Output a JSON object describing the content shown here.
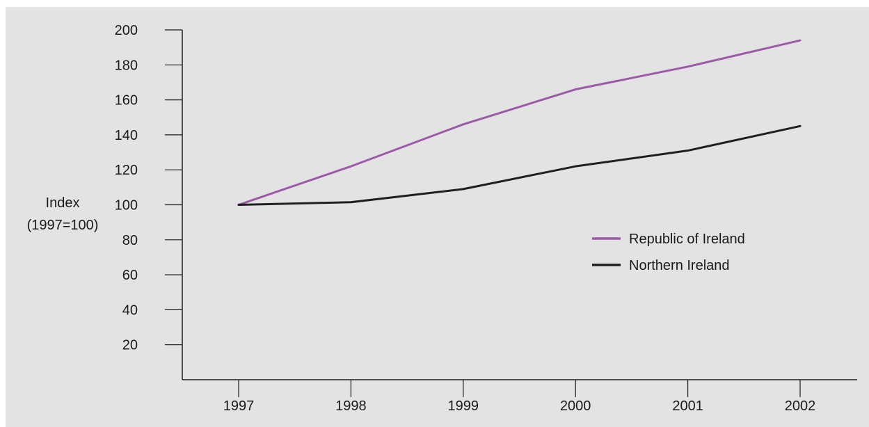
{
  "chart_data": {
    "type": "line",
    "title": "",
    "xlabel": "",
    "ylabel_lines": [
      "Index",
      "(1997=100)"
    ],
    "categories": [
      "1997",
      "1998",
      "1999",
      "2000",
      "2001",
      "2002"
    ],
    "yticks": [
      20,
      40,
      60,
      80,
      100,
      120,
      140,
      160,
      180,
      200
    ],
    "ylim": [
      0,
      200
    ],
    "grid": false,
    "legend_position": "right-center",
    "series": [
      {
        "name": "Republic of Ireland",
        "color": "#9b59a8",
        "values": [
          100,
          122,
          146,
          166,
          179,
          194
        ]
      },
      {
        "name": "Northern Ireland",
        "color": "#1f1f1f",
        "values": [
          100,
          101.5,
          109,
          122,
          131,
          145
        ]
      }
    ]
  }
}
